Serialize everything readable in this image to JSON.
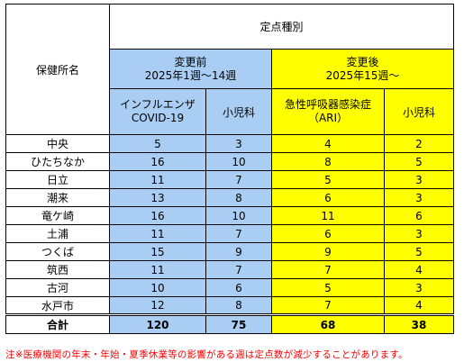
{
  "header": {
    "office_label": "保健所名",
    "type_label": "定点種別",
    "before": {
      "title": "変更前",
      "period": "2025年1週〜14週"
    },
    "after": {
      "title": "変更後",
      "period": "2025年15週〜"
    },
    "col_flu_line1": "インフルエンザ",
    "col_flu_line2": "COVID-19",
    "col_ped_before": "小児科",
    "col_ari_line1": "急性呼吸器感染症",
    "col_ari_line2": "（ARI）",
    "col_ped_after": "小児科"
  },
  "rows": [
    {
      "name": "中央",
      "flu": "5",
      "ped_before": "3",
      "ari": "4",
      "ped_after": "2"
    },
    {
      "name": "ひたちなか",
      "flu": "16",
      "ped_before": "10",
      "ari": "8",
      "ped_after": "5"
    },
    {
      "name": "日立",
      "flu": "11",
      "ped_before": "7",
      "ari": "5",
      "ped_after": "3"
    },
    {
      "name": "潮来",
      "flu": "13",
      "ped_before": "8",
      "ari": "6",
      "ped_after": "3"
    },
    {
      "name": "竜ケ崎",
      "flu": "16",
      "ped_before": "10",
      "ari": "11",
      "ped_after": "6"
    },
    {
      "name": "土浦",
      "flu": "11",
      "ped_before": "7",
      "ari": "6",
      "ped_after": "3"
    },
    {
      "name": "つくば",
      "flu": "15",
      "ped_before": "9",
      "ari": "9",
      "ped_after": "5"
    },
    {
      "name": "筑西",
      "flu": "11",
      "ped_before": "7",
      "ari": "7",
      "ped_after": "4"
    },
    {
      "name": "古河",
      "flu": "10",
      "ped_before": "6",
      "ari": "5",
      "ped_after": "3"
    },
    {
      "name": "水戸市",
      "flu": "12",
      "ped_before": "8",
      "ari": "7",
      "ped_after": "4"
    }
  ],
  "total": {
    "name": "合計",
    "flu": "120",
    "ped_before": "75",
    "ari": "68",
    "ped_after": "38"
  },
  "note": "注※医療機関の年末・年始・夏季休業等の影響がある週は定点数が減少することがあります。",
  "colors": {
    "before_bg": "#a9cdf3",
    "after_bg": "#ffff00",
    "note_text": "#ff0000"
  }
}
